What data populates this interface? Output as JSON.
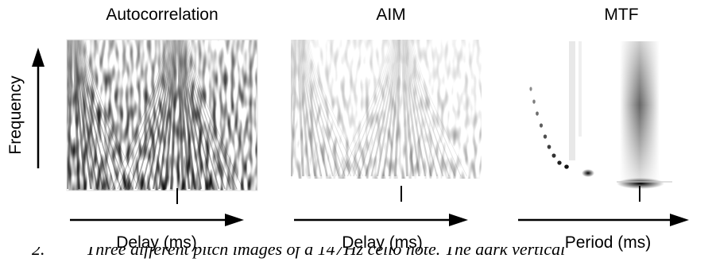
{
  "figure": {
    "panels": [
      {
        "title": "Autocorrelation",
        "xlabel": "Delay (ms)"
      },
      {
        "title": "AIM",
        "xlabel": "Delay (ms)"
      },
      {
        "title": "MTF",
        "xlabel": "Period (ms)"
      }
    ],
    "ylabel": "Frequency"
  },
  "caption": {
    "prefix": "2.",
    "text": "Three different pitch images of a 147Hz cello note. The dark vertical"
  }
}
